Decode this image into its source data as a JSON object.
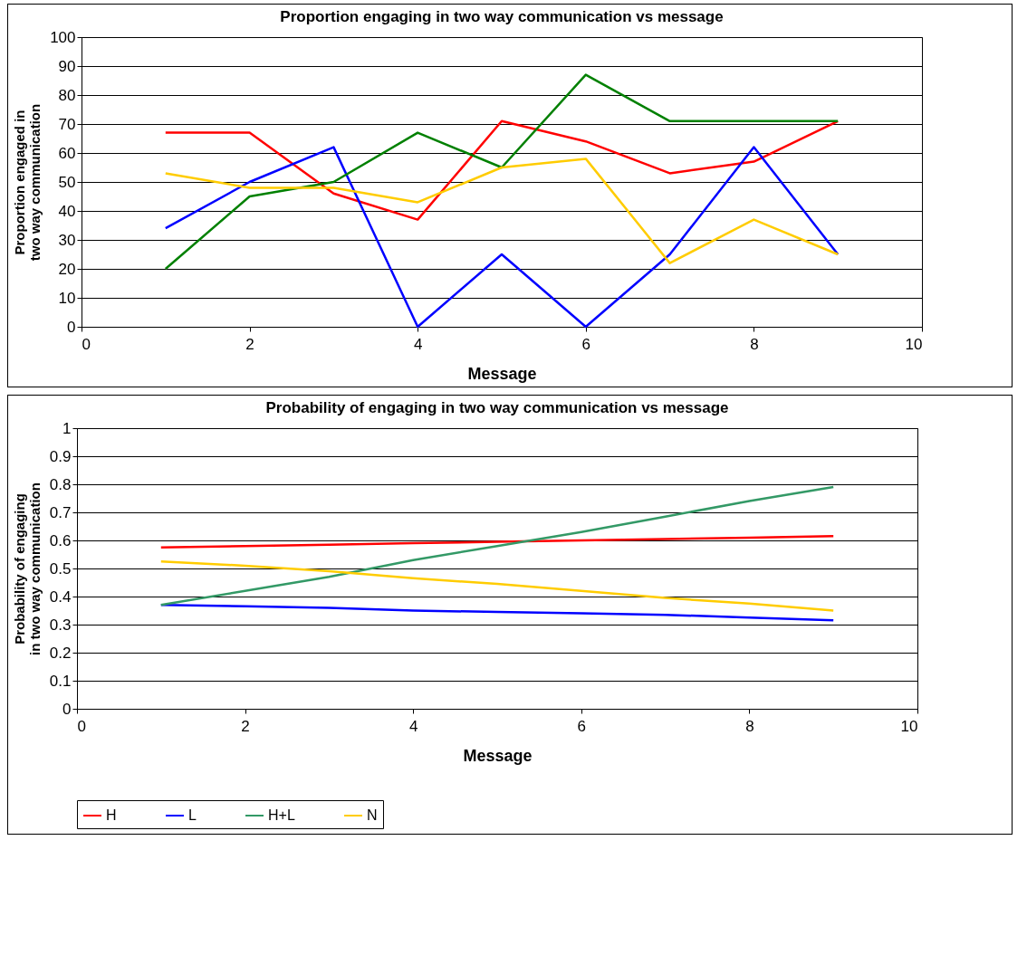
{
  "chart_data": [
    {
      "type": "line",
      "title": "Proportion engaging in two way communication vs message",
      "xlabel": "Message",
      "ylabel": "Proportion engaged in two way communication",
      "x": [
        1,
        2,
        3,
        4,
        5,
        6,
        7,
        8,
        9
      ],
      "xlim": [
        0,
        10
      ],
      "xticks": [
        0,
        2,
        4,
        6,
        8,
        10
      ],
      "ylim": [
        0,
        100
      ],
      "yticks": [
        0,
        10,
        20,
        30,
        40,
        50,
        60,
        70,
        80,
        90,
        100
      ],
      "grid": "y",
      "legend": false,
      "marker": "none",
      "series": [
        {
          "color": "#ff0000",
          "values": [
            67,
            67,
            46,
            37,
            71,
            64,
            53,
            57,
            71
          ]
        },
        {
          "color": "#0000ff",
          "values": [
            34,
            50,
            62,
            0,
            25,
            0,
            25,
            62,
            25
          ]
        },
        {
          "color": "#008000",
          "values": [
            20,
            45,
            50,
            67,
            55,
            87,
            71,
            71,
            71
          ]
        },
        {
          "color": "#ffcc00",
          "values": [
            53,
            48,
            48,
            43,
            55,
            58,
            22,
            37,
            25
          ]
        }
      ]
    },
    {
      "type": "line",
      "title": "Probability of engaging in two way communication vs message",
      "xlabel": "Message",
      "ylabel": "Probability of engaging in two way communication",
      "x": [
        1,
        2,
        3,
        4,
        5,
        6,
        7,
        8,
        9
      ],
      "xlim": [
        0,
        10
      ],
      "xticks": [
        0,
        2,
        4,
        6,
        8,
        10
      ],
      "ylim": [
        0,
        1
      ],
      "yticks": [
        0,
        0.1,
        0.2,
        0.3,
        0.4,
        0.5,
        0.6,
        0.7,
        0.8,
        0.9,
        1
      ],
      "grid": "y",
      "legend": "bottom",
      "marker": "none",
      "series": [
        {
          "name": "H",
          "color": "#ff0000",
          "values": [
            0.575,
            0.58,
            0.585,
            0.59,
            0.595,
            0.6,
            0.605,
            0.61,
            0.615
          ]
        },
        {
          "name": "L",
          "color": "#0000ff",
          "values": [
            0.37,
            0.365,
            0.36,
            0.35,
            0.345,
            0.34,
            0.335,
            0.325,
            0.315
          ]
        },
        {
          "name": "H+L",
          "color": "#339966",
          "values": [
            0.37,
            0.42,
            0.47,
            0.53,
            0.58,
            0.63,
            0.685,
            0.74,
            0.79
          ]
        },
        {
          "name": "N",
          "color": "#ffcc00",
          "values": [
            0.525,
            0.51,
            0.49,
            0.465,
            0.445,
            0.42,
            0.395,
            0.375,
            0.35
          ]
        }
      ]
    }
  ]
}
